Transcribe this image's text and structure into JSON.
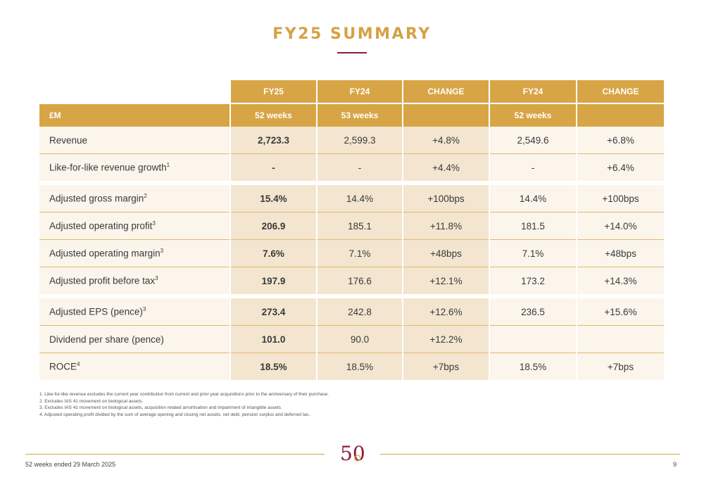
{
  "title": "FY25 SUMMARY",
  "table": {
    "header_row1": [
      "FY25",
      "FY24",
      "CHANGE",
      "FY24",
      "CHANGE"
    ],
    "header_row2": {
      "label": "£M",
      "cols": [
        "52 weeks",
        "53 weeks",
        "",
        "52 weeks",
        ""
      ]
    },
    "rows": [
      {
        "label": "Revenue",
        "sup": "",
        "fy25": "2,723.3",
        "fy24": "2,599.3",
        "change": "+4.8%",
        "fy24_52": "2,549.6",
        "change_52": "+6.8%"
      },
      {
        "label": "Like-for-like revenue growth",
        "sup": "1",
        "fy25": "-",
        "fy24": "-",
        "change": "+4.4%",
        "fy24_52": "-",
        "change_52": "+6.4%"
      },
      {
        "label": "Adjusted gross margin",
        "sup": "2",
        "fy25": "15.4%",
        "fy24": "14.4%",
        "change": "+100bps",
        "fy24_52": "14.4%",
        "change_52": "+100bps"
      },
      {
        "label": "Adjusted operating profit",
        "sup": "3",
        "fy25": "206.9",
        "fy24": "185.1",
        "change": "+11.8%",
        "fy24_52": "181.5",
        "change_52": "+14.0%"
      },
      {
        "label": "Adjusted operating margin",
        "sup": "3",
        "fy25": "7.6%",
        "fy24": "7.1%",
        "change": "+48bps",
        "fy24_52": "7.1%",
        "change_52": "+48bps"
      },
      {
        "label": "Adjusted profit before tax",
        "sup": "3",
        "fy25": "197.9",
        "fy24": "176.6",
        "change": "+12.1%",
        "fy24_52": "173.2",
        "change_52": "+14.3%"
      },
      {
        "label": "Adjusted EPS (pence)",
        "sup": "3",
        "fy25": "273.4",
        "fy24": "242.8",
        "change": "+12.6%",
        "fy24_52": "236.5",
        "change_52": "+15.6%"
      },
      {
        "label": "Dividend per share (pence)",
        "sup": "",
        "fy25": "101.0",
        "fy24": "90.0",
        "change": "+12.2%",
        "fy24_52": "",
        "change_52": ""
      },
      {
        "label": "ROCE",
        "sup": "4",
        "fy25": "18.5%",
        "fy24": "18.5%",
        "change": "+7bps",
        "fy24_52": "18.5%",
        "change_52": "+7bps"
      }
    ]
  },
  "footnotes": [
    "1.   Like-for-like revenue excludes the current year contribution from current and prior year acquisitions prior to the anniversary of their purchase.",
    "2.   Excludes IAS 41 movement on biological assets.",
    "3.   Excludes IAS 41 movement on biological assets, acquisition related amortisation and impairment of intangible assets.",
    "4.   Adjusted operating profit divided by the sum of average opening and closing net assets, net debt, pension surplus and deferred tax.."
  ],
  "footer": {
    "left": "52 weeks ended 29 March 2025",
    "page": "9"
  },
  "logo": {
    "text": "50",
    "icon": "50-anniversary-logo",
    "color_primary": "#8a1c3a",
    "color_accent": "#d8a546"
  },
  "colors": {
    "gold": "#d8a546",
    "title": "#d4a145",
    "maroon": "#8a1c3a",
    "cell_dark": "#f3e5cf",
    "cell_light": "#fbf5ec"
  }
}
